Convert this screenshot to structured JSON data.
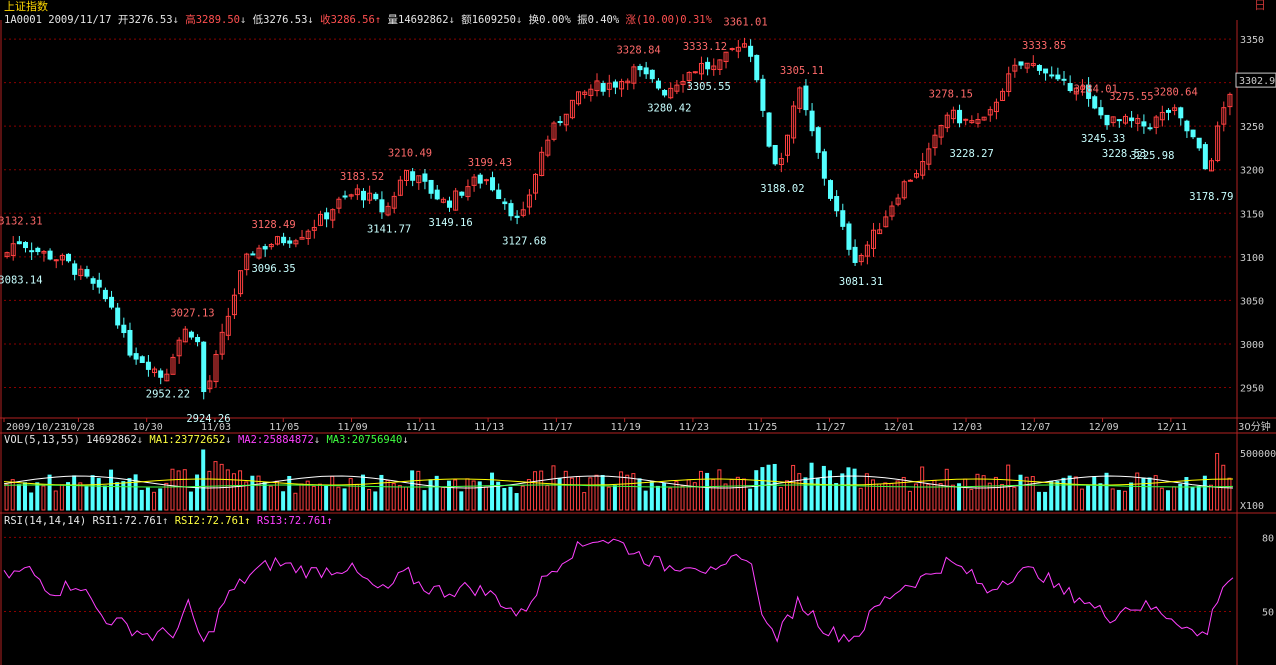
{
  "window": {
    "title": "上证指数",
    "icon_glyph": "日"
  },
  "header": {
    "code": "1A0001",
    "date": "2009/11/17",
    "open_label": "开",
    "open": "3276.53",
    "open_arrow": "↓",
    "high_label": "高",
    "high": "3289.50",
    "high_arrow": "↓",
    "low_label": "低",
    "low": "3276.53",
    "low_arrow": "↓",
    "close_label": "收",
    "close": "3286.56",
    "close_arrow": "↑",
    "volume_label": "量",
    "volume": "14692862",
    "volume_arrow": "↓",
    "amount_label": "额",
    "amount": "1609250",
    "amount_arrow": "↓",
    "turnover_label": "换",
    "turnover": "0.00%",
    "amplitude_label": "振",
    "amplitude": "0.40%",
    "change_label": "涨",
    "change": "(10.00)",
    "change_pct": "0.31%"
  },
  "volume_panel": {
    "label": "VOL(5,13,55)",
    "value": "14692862",
    "arrow0": "↓",
    "ma1_label": "MA1:",
    "ma1": "23772652",
    "arrow1": "↓",
    "ma2_label": "MA2:",
    "ma2": "25884872",
    "arrow2": "↓",
    "ma3_label": "MA3:",
    "ma3": "20756940",
    "arrow3": "↓",
    "scale_top": "500000",
    "scale_unit": "X100"
  },
  "rsi_panel": {
    "label": "RSI(14,14,14)",
    "rsi1_label": "RSI1:",
    "rsi1": "72.761",
    "arrow1": "↑",
    "rsi2_label": "RSI2:",
    "rsi2": "72.761",
    "arrow2": "↑",
    "rsi3_label": "RSI3:",
    "rsi3": "72.761",
    "arrow3": "↑",
    "axis_labels": [
      "80",
      "50"
    ]
  },
  "colors": {
    "up": "#ff4040",
    "down": "#54ffff",
    "grid": "#8b0000",
    "axis": "#b22222",
    "ma1": "#ffffff",
    "ma2": "#ffff00",
    "ma3": "#40ff40",
    "rsi": "#ff40ff"
  },
  "chart_data": {
    "type": "candlestick",
    "price_axis": {
      "ticks": [
        3350,
        3300,
        3250,
        3200,
        3150,
        3100,
        3050,
        3000,
        2950
      ],
      "range": [
        2915,
        3365
      ],
      "last_price_tag": "3302.9"
    },
    "x_axis": {
      "tick_labels": [
        "2009/10/23",
        "10/28",
        "10/30",
        "11/03",
        "11/05",
        "11/09",
        "11/11",
        "11/13",
        "11/17",
        "11/19",
        "11/23",
        "11/25",
        "11/27",
        "12/01",
        "12/03",
        "12/07",
        "12/09",
        "12/11"
      ],
      "period_label": "30分钟"
    },
    "key_points": [
      {
        "value": "3132.31",
        "kind": "high",
        "at": 0.01
      },
      {
        "value": "3083.14",
        "kind": "low",
        "at": 0.01
      },
      {
        "value": "2952.22",
        "kind": "low",
        "at": 0.13
      },
      {
        "value": "3027.13",
        "kind": "high",
        "at": 0.15
      },
      {
        "value": "2924.26",
        "kind": "low",
        "at": 0.163
      },
      {
        "value": "3128.49",
        "kind": "high",
        "at": 0.216
      },
      {
        "value": "3096.35",
        "kind": "low",
        "at": 0.216
      },
      {
        "value": "3183.52",
        "kind": "high",
        "at": 0.288
      },
      {
        "value": "3210.49",
        "kind": "high",
        "at": 0.327
      },
      {
        "value": "3141.77",
        "kind": "low",
        "at": 0.31
      },
      {
        "value": "3149.16",
        "kind": "low",
        "at": 0.36
      },
      {
        "value": "3199.43",
        "kind": "high",
        "at": 0.392
      },
      {
        "value": "3127.68",
        "kind": "low",
        "at": 0.42
      },
      {
        "value": "3328.84",
        "kind": "high",
        "at": 0.513
      },
      {
        "value": "3280.42",
        "kind": "low",
        "at": 0.538
      },
      {
        "value": "3333.12",
        "kind": "high",
        "at": 0.567
      },
      {
        "value": "3305.55",
        "kind": "low",
        "at": 0.57
      },
      {
        "value": "3361.01",
        "kind": "high",
        "at": 0.6
      },
      {
        "value": "3188.02",
        "kind": "low",
        "at": 0.63
      },
      {
        "value": "3305.11",
        "kind": "high",
        "at": 0.646
      },
      {
        "value": "3081.31",
        "kind": "low",
        "at": 0.694
      },
      {
        "value": "3278.15",
        "kind": "high",
        "at": 0.767
      },
      {
        "value": "3228.27",
        "kind": "low",
        "at": 0.784
      },
      {
        "value": "3333.85",
        "kind": "high",
        "at": 0.843
      },
      {
        "value": "3284.01",
        "kind": "high",
        "at": 0.885
      },
      {
        "value": "3245.33",
        "kind": "low",
        "at": 0.891
      },
      {
        "value": "3275.55",
        "kind": "high",
        "at": 0.914
      },
      {
        "value": "3228.53",
        "kind": "low",
        "at": 0.908
      },
      {
        "value": "3225.98",
        "kind": "low",
        "at": 0.931
      },
      {
        "value": "3280.64",
        "kind": "high",
        "at": 0.95
      },
      {
        "value": "3178.79",
        "kind": "low",
        "at": 0.979
      }
    ],
    "close_path": [
      [
        0,
        3100
      ],
      [
        0.01,
        3120
      ],
      [
        0.03,
        3105
      ],
      [
        0.05,
        3095
      ],
      [
        0.07,
        3070
      ],
      [
        0.09,
        3040
      ],
      [
        0.1,
        2995
      ],
      [
        0.12,
        2975
      ],
      [
        0.13,
        2960
      ],
      [
        0.14,
        3000
      ],
      [
        0.15,
        3020
      ],
      [
        0.16,
        2995
      ],
      [
        0.163,
        2935
      ],
      [
        0.18,
        3020
      ],
      [
        0.19,
        3070
      ],
      [
        0.2,
        3105
      ],
      [
        0.216,
        3115
      ],
      [
        0.24,
        3125
      ],
      [
        0.26,
        3145
      ],
      [
        0.27,
        3160
      ],
      [
        0.288,
        3175
      ],
      [
        0.3,
        3165
      ],
      [
        0.31,
        3150
      ],
      [
        0.327,
        3200
      ],
      [
        0.34,
        3185
      ],
      [
        0.36,
        3160
      ],
      [
        0.38,
        3185
      ],
      [
        0.392,
        3190
      ],
      [
        0.41,
        3160
      ],
      [
        0.42,
        3135
      ],
      [
        0.43,
        3185
      ],
      [
        0.44,
        3230
      ],
      [
        0.46,
        3275
      ],
      [
        0.48,
        3295
      ],
      [
        0.5,
        3300
      ],
      [
        0.513,
        3315
      ],
      [
        0.538,
        3290
      ],
      [
        0.55,
        3305
      ],
      [
        0.567,
        3320
      ],
      [
        0.58,
        3315
      ],
      [
        0.6,
        3350
      ],
      [
        0.61,
        3330
      ],
      [
        0.62,
        3240
      ],
      [
        0.63,
        3200
      ],
      [
        0.646,
        3295
      ],
      [
        0.66,
        3230
      ],
      [
        0.67,
        3180
      ],
      [
        0.685,
        3120
      ],
      [
        0.694,
        3095
      ],
      [
        0.71,
        3130
      ],
      [
        0.73,
        3180
      ],
      [
        0.75,
        3210
      ],
      [
        0.767,
        3265
      ],
      [
        0.784,
        3255
      ],
      [
        0.8,
        3255
      ],
      [
        0.81,
        3290
      ],
      [
        0.825,
        3320
      ],
      [
        0.843,
        3320
      ],
      [
        0.86,
        3295
      ],
      [
        0.875,
        3300
      ],
      [
        0.885,
        3270
      ],
      [
        0.9,
        3255
      ],
      [
        0.914,
        3255
      ],
      [
        0.93,
        3250
      ],
      [
        0.95,
        3270
      ],
      [
        0.96,
        3250
      ],
      [
        0.97,
        3230
      ],
      [
        0.979,
        3195
      ],
      [
        0.99,
        3260
      ],
      [
        1,
        3300
      ]
    ],
    "volume_series": {
      "description_values_relative": true
    },
    "rsi_series": {
      "axis_labels": [
        80,
        50
      ],
      "path": [
        [
          0,
          64
        ],
        [
          0.02,
          67
        ],
        [
          0.04,
          58
        ],
        [
          0.06,
          62
        ],
        [
          0.08,
          48
        ],
        [
          0.1,
          44
        ],
        [
          0.12,
          40
        ],
        [
          0.14,
          42
        ],
        [
          0.15,
          52
        ],
        [
          0.163,
          36
        ],
        [
          0.18,
          55
        ],
        [
          0.2,
          65
        ],
        [
          0.22,
          70
        ],
        [
          0.25,
          66
        ],
        [
          0.28,
          68
        ],
        [
          0.3,
          60
        ],
        [
          0.31,
          58
        ],
        [
          0.327,
          66
        ],
        [
          0.34,
          60
        ],
        [
          0.36,
          58
        ],
        [
          0.38,
          60
        ],
        [
          0.4,
          56
        ],
        [
          0.42,
          48
        ],
        [
          0.44,
          64
        ],
        [
          0.46,
          74
        ],
        [
          0.47,
          76
        ],
        [
          0.48,
          80
        ],
        [
          0.5,
          78
        ],
        [
          0.52,
          72
        ],
        [
          0.54,
          68
        ],
        [
          0.56,
          70
        ],
        [
          0.58,
          64
        ],
        [
          0.6,
          74
        ],
        [
          0.61,
          66
        ],
        [
          0.62,
          44
        ],
        [
          0.63,
          40
        ],
        [
          0.646,
          54
        ],
        [
          0.66,
          48
        ],
        [
          0.67,
          42
        ],
        [
          0.685,
          40
        ],
        [
          0.694,
          40
        ],
        [
          0.71,
          52
        ],
        [
          0.73,
          60
        ],
        [
          0.75,
          64
        ],
        [
          0.767,
          70
        ],
        [
          0.784,
          66
        ],
        [
          0.8,
          58
        ],
        [
          0.81,
          62
        ],
        [
          0.825,
          66
        ],
        [
          0.843,
          66
        ],
        [
          0.86,
          58
        ],
        [
          0.875,
          56
        ],
        [
          0.885,
          52
        ],
        [
          0.9,
          48
        ],
        [
          0.914,
          52
        ],
        [
          0.93,
          52
        ],
        [
          0.95,
          48
        ],
        [
          0.96,
          45
        ],
        [
          0.97,
          40
        ],
        [
          0.979,
          42
        ],
        [
          0.99,
          60
        ],
        [
          1,
          64
        ]
      ]
    }
  }
}
